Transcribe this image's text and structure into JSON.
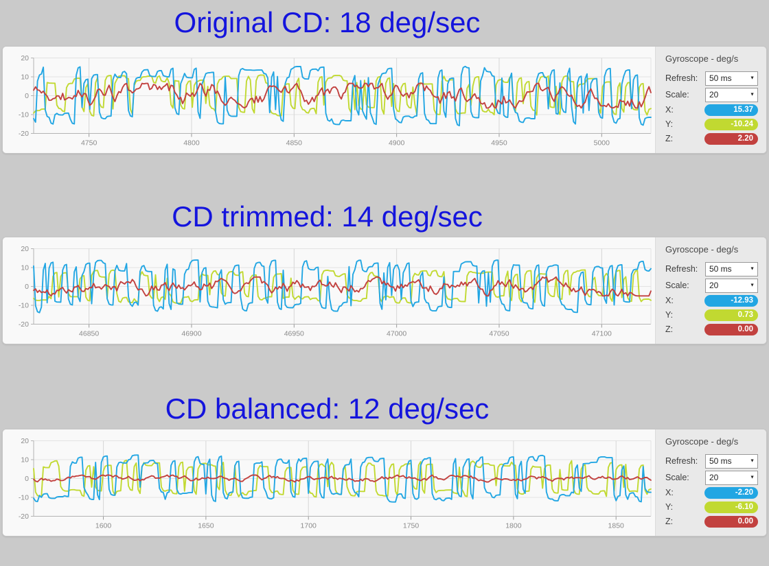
{
  "page": {
    "background": "#cacaca"
  },
  "colors": {
    "x": "#22a6e3",
    "y": "#c1d931",
    "z": "#c2413f",
    "title": "#1414dd"
  },
  "sections": [
    {
      "title": "Original CD: 18 deg/sec",
      "sidebar": {
        "title": "Gyroscope - deg/s",
        "refresh_label": "Refresh:",
        "refresh_value": "50 ms",
        "scale_label": "Scale:",
        "scale_value": "20",
        "x_label": "X:",
        "y_label": "Y:",
        "z_label": "Z:",
        "x_value": "15.37",
        "y_value": "-10.24",
        "z_value": "2.20"
      }
    },
    {
      "title": "CD trimmed: 14 deg/sec",
      "sidebar": {
        "title": "Gyroscope - deg/s",
        "refresh_label": "Refresh:",
        "refresh_value": "50 ms",
        "scale_label": "Scale:",
        "scale_value": "20",
        "x_label": "X:",
        "y_label": "Y:",
        "z_label": "Z:",
        "x_value": "-12.93",
        "y_value": "0.73",
        "z_value": "0.00"
      }
    },
    {
      "title": "CD balanced: 12 deg/sec",
      "sidebar": {
        "title": "Gyroscope - deg/s",
        "refresh_label": "Refresh:",
        "refresh_value": "50 ms",
        "scale_label": "Scale:",
        "scale_value": "20",
        "x_label": "X:",
        "y_label": "Y:",
        "z_label": "Z:",
        "x_value": "-2.20",
        "y_value": "-6.10",
        "z_value": "0.00"
      }
    }
  ],
  "chart_data": [
    {
      "type": "line",
      "title": "Original CD: 18 deg/sec",
      "xlabel": "",
      "ylabel": "deg/s",
      "x_ticks": [
        4750,
        4800,
        4850,
        4900,
        4950,
        5000
      ],
      "x_range": [
        4723,
        5024
      ],
      "y_ticks": [
        20,
        10,
        0,
        -10,
        -20
      ],
      "y_range": [
        -20,
        20
      ],
      "grid": true,
      "legend": "none",
      "points_per_series": 320,
      "series": [
        {
          "name": "X",
          "color": "#22a6e3",
          "style": "square",
          "amplitude": 16,
          "seed": 101,
          "current": 15.37
        },
        {
          "name": "Y",
          "color": "#c1d931",
          "style": "square",
          "amplitude": 11,
          "seed": 202,
          "current": -10.24
        },
        {
          "name": "Z",
          "color": "#c2413f",
          "style": "walk",
          "amplitude": 6.5,
          "seed": 303,
          "current": 2.2
        }
      ]
    },
    {
      "type": "line",
      "title": "CD trimmed: 14 deg/sec",
      "xlabel": "",
      "ylabel": "deg/s",
      "x_ticks": [
        46850,
        46900,
        46950,
        47000,
        47050,
        47100
      ],
      "x_range": [
        46823,
        47124
      ],
      "y_ticks": [
        20,
        10,
        0,
        -10,
        -20
      ],
      "y_range": [
        -20,
        20
      ],
      "grid": true,
      "legend": "none",
      "points_per_series": 320,
      "series": [
        {
          "name": "X",
          "color": "#22a6e3",
          "style": "square",
          "amplitude": 14,
          "seed": 111,
          "current": -12.93
        },
        {
          "name": "Y",
          "color": "#c1d931",
          "style": "square",
          "amplitude": 9,
          "seed": 222,
          "current": 0.73
        },
        {
          "name": "Z",
          "color": "#c2413f",
          "style": "walk",
          "amplitude": 5,
          "seed": 333,
          "current": 0.0
        }
      ]
    },
    {
      "type": "line",
      "title": "CD balanced: 12 deg/sec",
      "xlabel": "",
      "ylabel": "deg/s",
      "x_ticks": [
        1600,
        1650,
        1700,
        1750,
        1800,
        1850
      ],
      "x_range": [
        1566,
        1867
      ],
      "y_ticks": [
        20,
        10,
        0,
        -10,
        -20
      ],
      "y_range": [
        -20,
        20
      ],
      "grid": true,
      "legend": "none",
      "points_per_series": 320,
      "series": [
        {
          "name": "X",
          "color": "#22a6e3",
          "style": "square",
          "amplitude": 12.5,
          "seed": 121,
          "current": -2.2
        },
        {
          "name": "Y",
          "color": "#c1d931",
          "style": "square",
          "amplitude": 10,
          "seed": 232,
          "current": -6.1
        },
        {
          "name": "Z",
          "color": "#c2413f",
          "style": "walk",
          "amplitude": 1.8,
          "seed": 343,
          "current": 0.0
        }
      ]
    }
  ]
}
